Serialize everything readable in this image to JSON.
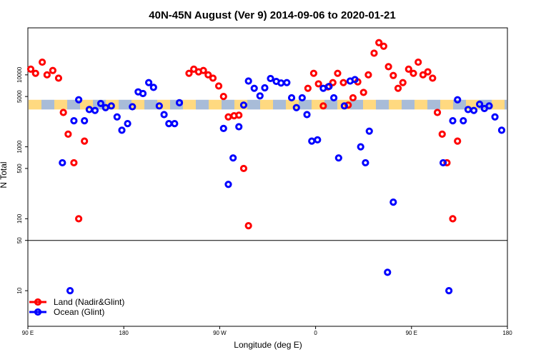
{
  "chart_data": {
    "type": "scatter",
    "title": "40N-45N August (Ver 9)   2014-09-06 to 2020-01-21",
    "xlabel": "Longitude (deg E)",
    "ylabel": "N Total",
    "x_scale": "linear",
    "y_scale": "log",
    "xlim": [
      0,
      500
    ],
    "ylim": [
      3.2,
      45000
    ],
    "x_ticks": [
      {
        "value": 0,
        "label": "90 E"
      },
      {
        "value": 100,
        "label": "180"
      },
      {
        "value": 200,
        "label": "90 W"
      },
      {
        "value": 300,
        "label": "0"
      },
      {
        "value": 400,
        "label": "90 E"
      },
      {
        "value": 500,
        "label": "180"
      }
    ],
    "y_ticks": [
      {
        "value": 10,
        "label": "10"
      },
      {
        "value": 50,
        "label": "50"
      },
      {
        "value": 100,
        "label": "100"
      },
      {
        "value": 500,
        "label": "500"
      },
      {
        "value": 1000,
        "label": "1000"
      },
      {
        "value": 5000,
        "label": "5000"
      },
      {
        "value": 10000,
        "label": "10000"
      }
    ],
    "reference_line": {
      "value": 50
    },
    "band": {
      "y_low": 3300,
      "y_high": 4500,
      "colors": [
        "#ffd980",
        "#a8bcd8"
      ]
    },
    "legend": {
      "position": "bottom-left"
    },
    "series": [
      {
        "name": "Land (Nadir&Glint)",
        "color": "#ff0000",
        "points": [
          [
            3,
            12000
          ],
          [
            8,
            10500
          ],
          [
            15,
            15000
          ],
          [
            20,
            10000
          ],
          [
            26,
            11500
          ],
          [
            32,
            9000
          ],
          [
            37,
            3000
          ],
          [
            42,
            1500
          ],
          [
            48,
            600
          ],
          [
            53,
            100
          ],
          [
            59,
            1200
          ],
          [
            168,
            10500
          ],
          [
            173,
            12000
          ],
          [
            178,
            11000
          ],
          [
            183,
            11500
          ],
          [
            188,
            10000
          ],
          [
            193,
            9000
          ],
          [
            199,
            7000
          ],
          [
            204,
            5000
          ],
          [
            209,
            2600
          ],
          [
            215,
            2700
          ],
          [
            220,
            2750
          ],
          [
            225,
            500
          ],
          [
            230,
            80
          ],
          [
            292,
            6500
          ],
          [
            298,
            10500
          ],
          [
            303,
            7500
          ],
          [
            308,
            3700
          ],
          [
            313,
            6800
          ],
          [
            318,
            7800
          ],
          [
            323,
            10500
          ],
          [
            329,
            7800
          ],
          [
            334,
            3800
          ],
          [
            339,
            4800
          ],
          [
            344,
            8000
          ],
          [
            350,
            5700
          ],
          [
            355,
            10000
          ],
          [
            361,
            20000
          ],
          [
            366,
            28000
          ],
          [
            371,
            25000
          ],
          [
            376,
            13000
          ],
          [
            381,
            9800
          ],
          [
            386,
            6500
          ],
          [
            391,
            7800
          ],
          [
            397,
            12000
          ],
          [
            402,
            10500
          ],
          [
            407,
            15000
          ],
          [
            412,
            10000
          ],
          [
            417,
            11000
          ],
          [
            422,
            9000
          ],
          [
            427,
            3000
          ],
          [
            432,
            1500
          ],
          [
            437,
            600
          ],
          [
            443,
            100
          ],
          [
            448,
            1200
          ]
        ]
      },
      {
        "name": "Ocean (Glint)",
        "color": "#0000ff",
        "points": [
          [
            36,
            600
          ],
          [
            44,
            10
          ],
          [
            48,
            2300
          ],
          [
            53,
            4500
          ],
          [
            59,
            2300
          ],
          [
            64,
            3300
          ],
          [
            70,
            3200
          ],
          [
            76,
            4000
          ],
          [
            81,
            3500
          ],
          [
            87,
            3700
          ],
          [
            93,
            2600
          ],
          [
            98,
            1700
          ],
          [
            104,
            2100
          ],
          [
            109,
            3600
          ],
          [
            115,
            5800
          ],
          [
            120,
            5500
          ],
          [
            126,
            7800
          ],
          [
            131,
            6700
          ],
          [
            137,
            3700
          ],
          [
            142,
            2800
          ],
          [
            147,
            2100
          ],
          [
            153,
            2100
          ],
          [
            158,
            4100
          ],
          [
            204,
            1800
          ],
          [
            209,
            300
          ],
          [
            214,
            700
          ],
          [
            220,
            1900
          ],
          [
            225,
            3800
          ],
          [
            230,
            8200
          ],
          [
            236,
            6500
          ],
          [
            242,
            5100
          ],
          [
            247,
            6600
          ],
          [
            253,
            8900
          ],
          [
            259,
            8100
          ],
          [
            264,
            7700
          ],
          [
            270,
            7800
          ],
          [
            275,
            4800
          ],
          [
            280,
            3500
          ],
          [
            286,
            4800
          ],
          [
            291,
            2800
          ],
          [
            296,
            1200
          ],
          [
            302,
            1250
          ],
          [
            308,
            6500
          ],
          [
            314,
            6900
          ],
          [
            319,
            4800
          ],
          [
            324,
            700
          ],
          [
            330,
            3700
          ],
          [
            336,
            8200
          ],
          [
            341,
            8600
          ],
          [
            347,
            1000
          ],
          [
            352,
            600
          ],
          [
            356,
            1650
          ],
          [
            375,
            18
          ],
          [
            381,
            170
          ],
          [
            433,
            600
          ],
          [
            439,
            10
          ],
          [
            443,
            2300
          ],
          [
            448,
            4500
          ],
          [
            454,
            2300
          ],
          [
            459,
            3300
          ],
          [
            465,
            3200
          ],
          [
            471,
            3900
          ],
          [
            476,
            3400
          ],
          [
            481,
            3700
          ],
          [
            487,
            2600
          ],
          [
            494,
            1700
          ]
        ]
      }
    ]
  }
}
